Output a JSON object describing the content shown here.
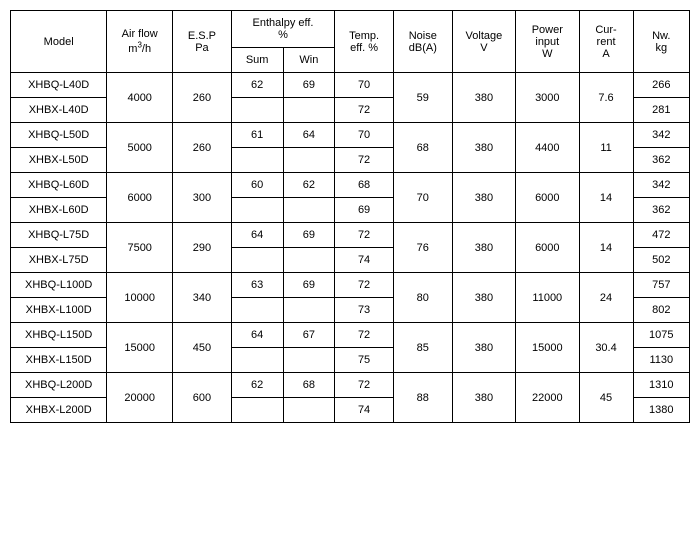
{
  "headers": {
    "model": "Model",
    "airflow_line1": "Air flow",
    "airflow_line2": "m³/h",
    "esp_line1": "E.S.P",
    "esp_line2": "Pa",
    "enthalpy_line1": "Enthalpy eff.",
    "enthalpy_line2": "%",
    "sum": "Sum",
    "win": "Win",
    "temp_line1": "Temp.",
    "temp_line2": "eff. %",
    "noise_line1": "Noise",
    "noise_line2": "dB(A)",
    "voltage_line1": "Voltage",
    "voltage_line2": "V",
    "power_line1": "Power",
    "power_line2": "input",
    "power_line3": "W",
    "current_line1": "Cur-",
    "current_line2": "rent",
    "current_line3": "A",
    "nw_line1": "Nw.",
    "nw_line2": "kg"
  },
  "groups": [
    {
      "airflow": "4000",
      "esp": "260",
      "noise": "59",
      "voltage": "380",
      "power": "3000",
      "current": "7.6",
      "rows": [
        {
          "model": "XHBQ-L40D",
          "sum": "62",
          "win": "69",
          "temp": "70",
          "nw": "266"
        },
        {
          "model": "XHBX-L40D",
          "sum": "",
          "win": "",
          "temp": "72",
          "nw": "281"
        }
      ]
    },
    {
      "airflow": "5000",
      "esp": "260",
      "noise": "68",
      "voltage": "380",
      "power": "4400",
      "current": "11",
      "rows": [
        {
          "model": "XHBQ-L50D",
          "sum": "61",
          "win": "64",
          "temp": "70",
          "nw": "342"
        },
        {
          "model": "XHBX-L50D",
          "sum": "",
          "win": "",
          "temp": "72",
          "nw": "362"
        }
      ]
    },
    {
      "airflow": "6000",
      "esp": "300",
      "noise": "70",
      "voltage": "380",
      "power": "6000",
      "current": "14",
      "rows": [
        {
          "model": "XHBQ-L60D",
          "sum": "60",
          "win": "62",
          "temp": "68",
          "nw": "342"
        },
        {
          "model": "XHBX-L60D",
          "sum": "",
          "win": "",
          "temp": "69",
          "nw": "362"
        }
      ]
    },
    {
      "airflow": "7500",
      "esp": "290",
      "noise": "76",
      "voltage": "380",
      "power": "6000",
      "current": "14",
      "rows": [
        {
          "model": "XHBQ-L75D",
          "sum": "64",
          "win": "69",
          "temp": "72",
          "nw": "472"
        },
        {
          "model": "XHBX-L75D",
          "sum": "",
          "win": "",
          "temp": "74",
          "nw": "502"
        }
      ]
    },
    {
      "airflow": "10000",
      "esp": "340",
      "noise": "80",
      "voltage": "380",
      "power": "11000",
      "current": "24",
      "rows": [
        {
          "model": "XHBQ-L100D",
          "sum": "63",
          "win": "69",
          "temp": "72",
          "nw": "757"
        },
        {
          "model": "XHBX-L100D",
          "sum": "",
          "win": "",
          "temp": "73",
          "nw": "802"
        }
      ]
    },
    {
      "airflow": "15000",
      "esp": "450",
      "noise": "85",
      "voltage": "380",
      "power": "15000",
      "current": "30.4",
      "rows": [
        {
          "model": "XHBQ-L150D",
          "sum": "64",
          "win": "67",
          "temp": "72",
          "nw": "1075"
        },
        {
          "model": "XHBX-L150D",
          "sum": "",
          "win": "",
          "temp": "75",
          "nw": "1130"
        }
      ]
    },
    {
      "airflow": "20000",
      "esp": "600",
      "noise": "88",
      "voltage": "380",
      "power": "22000",
      "current": "45",
      "rows": [
        {
          "model": "XHBQ-L200D",
          "sum": "62",
          "win": "68",
          "temp": "72",
          "nw": "1310"
        },
        {
          "model": "XHBX-L200D",
          "sum": "",
          "win": "",
          "temp": "74",
          "nw": "1380"
        }
      ]
    }
  ]
}
